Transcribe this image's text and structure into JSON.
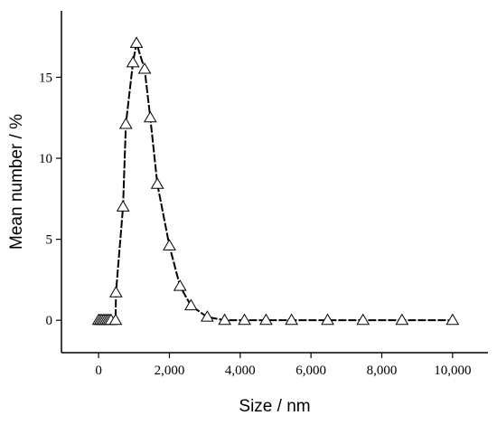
{
  "chart_data": {
    "type": "line",
    "x_label": "Size / nm",
    "y_label": "Mean number / %",
    "x": [
      0,
      50,
      100,
      150,
      200,
      250,
      300,
      350,
      480,
      490,
      690,
      770,
      970,
      1070,
      1300,
      1460,
      1660,
      2000,
      2300,
      2610,
      3070,
      3560,
      4120,
      4730,
      5450,
      6470,
      7470,
      8570,
      10000
    ],
    "values": [
      0,
      0,
      0,
      0,
      0,
      0,
      0,
      0,
      0,
      1.7,
      7.0,
      12.1,
      15.9,
      17.1,
      15.5,
      12.5,
      8.4,
      4.6,
      2.1,
      0.9,
      0.2,
      0,
      0,
      0,
      0,
      0,
      0,
      0,
      0
    ],
    "color": "#000000",
    "marker": "triangle",
    "xlim": [
      -1050,
      11000
    ],
    "ylim": [
      -2,
      19.1
    ],
    "xticks": [
      0,
      {
        "value": 2000,
        "label": "2,000"
      },
      {
        "value": 4000,
        "label": "4,000"
      },
      {
        "value": 6000,
        "label": "6,000"
      },
      {
        "value": 8000,
        "label": "8,000"
      },
      {
        "value": 10000,
        "label": "10,000"
      }
    ],
    "yticks": [
      0,
      5,
      10,
      15
    ],
    "grid": false
  }
}
